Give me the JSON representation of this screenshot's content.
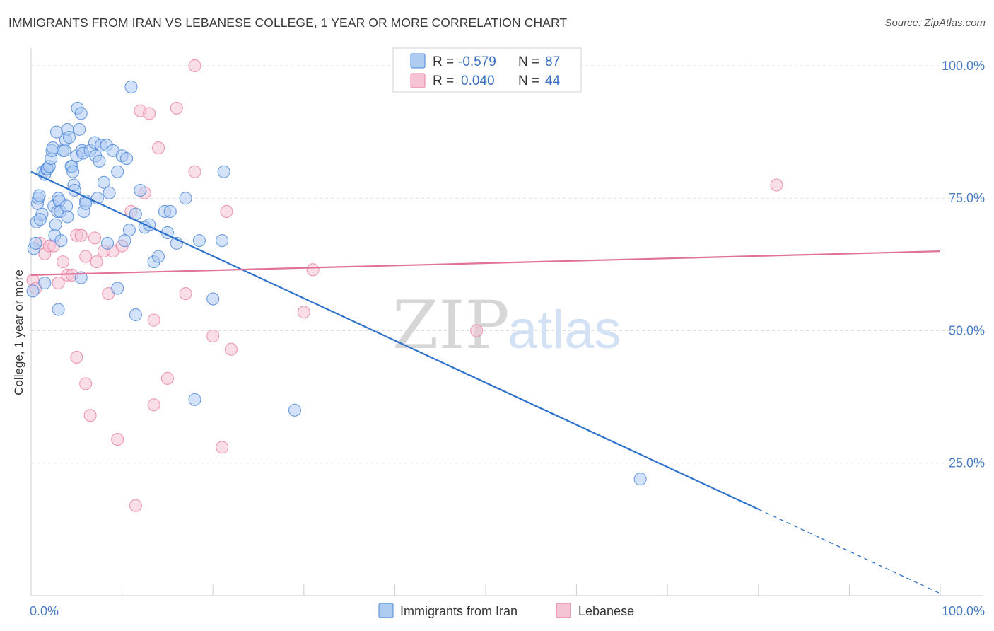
{
  "title": "IMMIGRANTS FROM IRAN VS LEBANESE COLLEGE, 1 YEAR OR MORE CORRELATION CHART",
  "source": "Source: ZipAtlas.com",
  "watermark": {
    "zip": "ZIP",
    "atlas": "atlas"
  },
  "colors": {
    "iran": "#4a86d8",
    "iran_fill": "#aecbf2",
    "lebanese": "#e87fa3",
    "lebanese_fill": "#f6c3d4",
    "iran_line": "#2f72cc",
    "lebanese_line": "#e0729a",
    "tick_text": "#4a7cc4",
    "grid": "#dddddd"
  },
  "legend": {
    "r_label": "R =",
    "n_label": "N =",
    "rows": [
      {
        "series": "iran",
        "r": "-0.579",
        "n": "87"
      },
      {
        "series": "lebanese",
        "r": "0.040",
        "n": "44"
      }
    ]
  },
  "chart_data": {
    "type": "scatter",
    "title": "IMMIGRANTS FROM IRAN VS LEBANESE COLLEGE, 1 YEAR OR MORE CORRELATION CHART",
    "xlabel": "",
    "ylabel": "College, 1 year or more",
    "xlim": [
      0,
      100
    ],
    "ylim": [
      0,
      102
    ],
    "x_tick_labels": [
      {
        "value": 0,
        "label": "0.0%"
      },
      {
        "value": 100,
        "label": "100.0%"
      }
    ],
    "y_tick_labels": [
      {
        "value": 25,
        "label": "25.0%"
      },
      {
        "value": 50,
        "label": "50.0%"
      },
      {
        "value": 75,
        "label": "75.0%"
      },
      {
        "value": 100,
        "label": "100.0%"
      }
    ],
    "grid": true,
    "legend_position": "top-center",
    "series": [
      {
        "name": "Immigrants from Iran",
        "key": "iran",
        "r": -0.579,
        "n": 87,
        "trend": {
          "x0": 0,
          "y0": 80,
          "x1": 80,
          "y1": 16.3,
          "dashed_to_x": 100,
          "dashed_to_y": 0.4
        },
        "points": [
          [
            0.3,
            65.5
          ],
          [
            0.5,
            66.5
          ],
          [
            0.6,
            70.5
          ],
          [
            0.7,
            74
          ],
          [
            0.8,
            75
          ],
          [
            0.9,
            75.5
          ],
          [
            1.2,
            72
          ],
          [
            1.3,
            80
          ],
          [
            1.5,
            79.5
          ],
          [
            1.7,
            80.5
          ],
          [
            1.8,
            80.5
          ],
          [
            2,
            81
          ],
          [
            2.2,
            82.5
          ],
          [
            2.3,
            84
          ],
          [
            2.4,
            84.5
          ],
          [
            2.5,
            73.5
          ],
          [
            2.6,
            68
          ],
          [
            2.7,
            70
          ],
          [
            2.8,
            87.5
          ],
          [
            2.9,
            72.5
          ],
          [
            3,
            75
          ],
          [
            3.1,
            74.5
          ],
          [
            3.2,
            72.5
          ],
          [
            3.3,
            67
          ],
          [
            3.5,
            84
          ],
          [
            3.7,
            84
          ],
          [
            3.8,
            86
          ],
          [
            3.9,
            73.5
          ],
          [
            4,
            88
          ],
          [
            4.2,
            86.5
          ],
          [
            4.4,
            81
          ],
          [
            4.5,
            81
          ],
          [
            4.6,
            80
          ],
          [
            4.7,
            77.5
          ],
          [
            4.8,
            76.5
          ],
          [
            5,
            83
          ],
          [
            5.1,
            92
          ],
          [
            5.3,
            88
          ],
          [
            5.5,
            91
          ],
          [
            5.6,
            84
          ],
          [
            5.7,
            83.5
          ],
          [
            5.8,
            72.5
          ],
          [
            6,
            74.5
          ],
          [
            6.5,
            84
          ],
          [
            7,
            85.5
          ],
          [
            7.1,
            83
          ],
          [
            7.3,
            75
          ],
          [
            7.5,
            82
          ],
          [
            7.7,
            85
          ],
          [
            8,
            78
          ],
          [
            8.3,
            85
          ],
          [
            8.4,
            66.5
          ],
          [
            8.6,
            76
          ],
          [
            9,
            84
          ],
          [
            9.5,
            80
          ],
          [
            10,
            83
          ],
          [
            10.3,
            67
          ],
          [
            10.5,
            82.5
          ],
          [
            10.8,
            69
          ],
          [
            11,
            96
          ],
          [
            11.5,
            72
          ],
          [
            12,
            76.5
          ],
          [
            12.5,
            69.5
          ],
          [
            13,
            70
          ],
          [
            13.5,
            63
          ],
          [
            14,
            64
          ],
          [
            14.7,
            72.5
          ],
          [
            15,
            68.5
          ],
          [
            15.3,
            72.5
          ],
          [
            16,
            66.5
          ],
          [
            17,
            75
          ],
          [
            18.5,
            67
          ],
          [
            20,
            56
          ],
          [
            21,
            67
          ],
          [
            21.2,
            80
          ],
          [
            29,
            35
          ],
          [
            9.5,
            58
          ],
          [
            11.5,
            53
          ],
          [
            1.5,
            59
          ],
          [
            3,
            54
          ],
          [
            5.5,
            60
          ],
          [
            0.2,
            57.5
          ],
          [
            18,
            37
          ],
          [
            67,
            22
          ],
          [
            4,
            71.5
          ],
          [
            1,
            71
          ],
          [
            6,
            74
          ]
        ]
      },
      {
        "name": "Lebanese",
        "key": "lebanese",
        "r": 0.04,
        "n": 44,
        "trend": {
          "x0": 0,
          "y0": 60.5,
          "x1": 100,
          "y1": 65
        },
        "points": [
          [
            0.2,
            59.5
          ],
          [
            1,
            66.5
          ],
          [
            1.5,
            64.5
          ],
          [
            2,
            66
          ],
          [
            2.5,
            66
          ],
          [
            3,
            59
          ],
          [
            3.5,
            63
          ],
          [
            4,
            60.5
          ],
          [
            4.5,
            60.5
          ],
          [
            5,
            68
          ],
          [
            5.5,
            68
          ],
          [
            6,
            64
          ],
          [
            7,
            67.5
          ],
          [
            7.2,
            63
          ],
          [
            8,
            65
          ],
          [
            8.5,
            57
          ],
          [
            9,
            65
          ],
          [
            10,
            66
          ],
          [
            11,
            72.5
          ],
          [
            11.5,
            17
          ],
          [
            12,
            91.5
          ],
          [
            12.5,
            76
          ],
          [
            13,
            91
          ],
          [
            13.5,
            52
          ],
          [
            14,
            84.5
          ],
          [
            15,
            41
          ],
          [
            16,
            92
          ],
          [
            17,
            57
          ],
          [
            18,
            80
          ],
          [
            18,
            100
          ],
          [
            20,
            49
          ],
          [
            21,
            28
          ],
          [
            21.5,
            72.5
          ],
          [
            22,
            46.5
          ],
          [
            30,
            53.5
          ],
          [
            31,
            61.5
          ],
          [
            49,
            50
          ],
          [
            82,
            77.5
          ],
          [
            5,
            45
          ],
          [
            6,
            40
          ],
          [
            6.5,
            34
          ],
          [
            9.5,
            29.5
          ],
          [
            13.5,
            36
          ],
          [
            0.5,
            58
          ]
        ]
      }
    ]
  },
  "bottom_legend": [
    {
      "series": "iran",
      "label": "Immigrants from Iran"
    },
    {
      "series": "lebanese",
      "label": "Lebanese"
    }
  ]
}
